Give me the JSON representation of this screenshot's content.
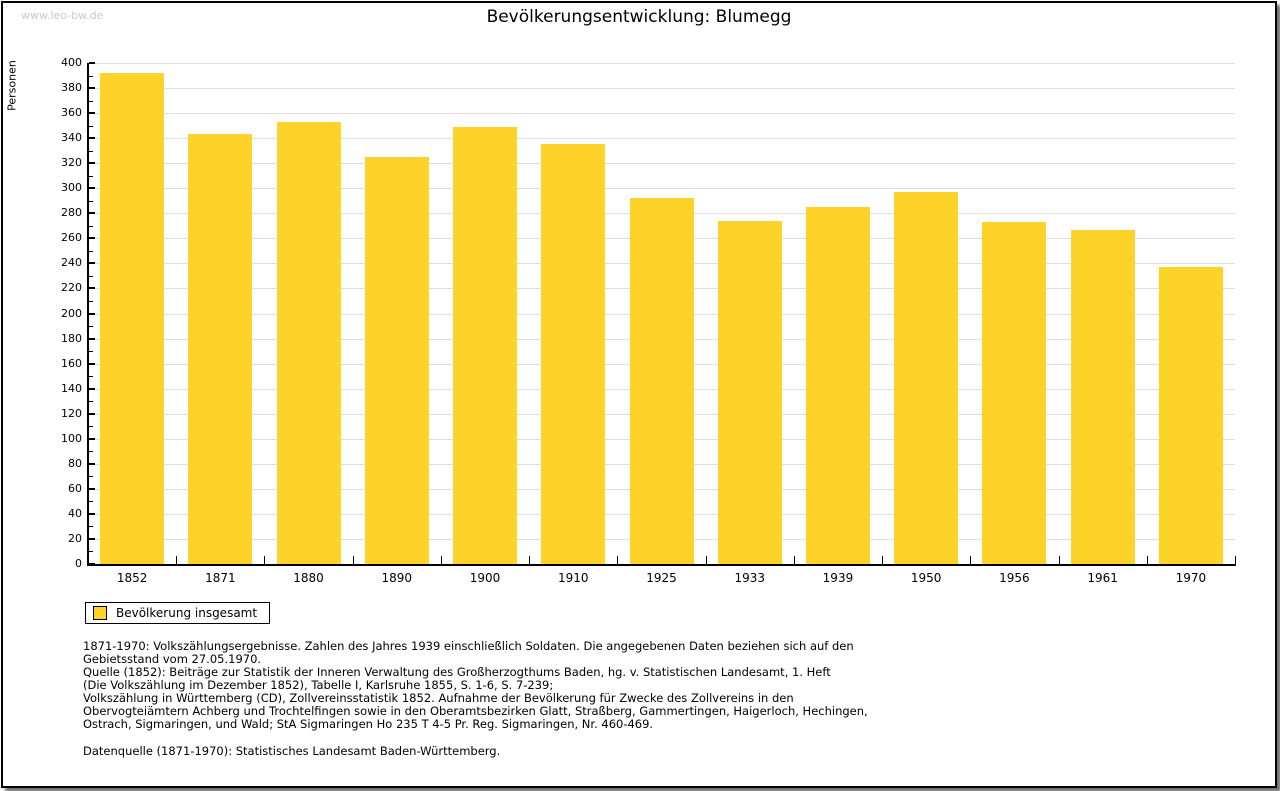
{
  "page": {
    "watermark": "www.leo-bw.de",
    "title": "Bevölkerungsentwicklung: Blumegg"
  },
  "colors": {
    "bar": "#FDD229",
    "grid": "#DEDEDE",
    "axis": "#000000",
    "watermark_text": "#C8C8C8"
  },
  "chart_data": {
    "type": "bar",
    "title": "Bevölkerungsentwicklung: Blumegg",
    "xlabel": "",
    "ylabel": "Personen",
    "categories": [
      "1852",
      "1871",
      "1880",
      "1890",
      "1900",
      "1910",
      "1925",
      "1933",
      "1939",
      "1950",
      "1956",
      "1961",
      "1970"
    ],
    "values": [
      392,
      343,
      353,
      325,
      349,
      335,
      292,
      274,
      285,
      297,
      273,
      267,
      237
    ],
    "ylim": [
      0,
      400
    ],
    "ytick_step": 20,
    "minor_tick_step": 10,
    "grid": "horizontal",
    "bar_color": "#FDD229",
    "legend_position": "below-left"
  },
  "legend": {
    "items": [
      {
        "label": "Bevölkerung insgesamt",
        "color": "#FDD229"
      }
    ]
  },
  "footer": {
    "note_lines": [
      "1871-1970: Volkszählungsergebnisse. Zahlen des Jahres 1939 einschließlich Soldaten. Die angegebenen Daten beziehen sich auf den",
      "Gebietsstand vom 27.05.1970.",
      "Quelle (1852): Beiträge zur Statistik der Inneren Verwaltung des Großherzogthums Baden, hg. v. Statistischen Landesamt, 1. Heft",
      "(Die Volkszählung im Dezember 1852), Tabelle I, Karlsruhe 1855, S. 1-6, S. 7-239;",
      "Volkszählung in Württemberg (CD), Zollvereinsstatistik 1852. Aufnahme der Bevölkerung für Zwecke des Zollvereins in den",
      "Obervogteiämtern Achberg und Trochtelfingen sowie in den Oberamtsbezirken Glatt, Straßberg, Gammertingen, Haigerloch, Hechingen,",
      "Ostrach, Sigmaringen, und Wald; StA Sigmaringen Ho 235 T 4-5 Pr. Reg. Sigmaringen, Nr. 460-469."
    ],
    "source_line": "Datenquelle (1871-1970): Statistisches Landesamt Baden-Württemberg."
  }
}
